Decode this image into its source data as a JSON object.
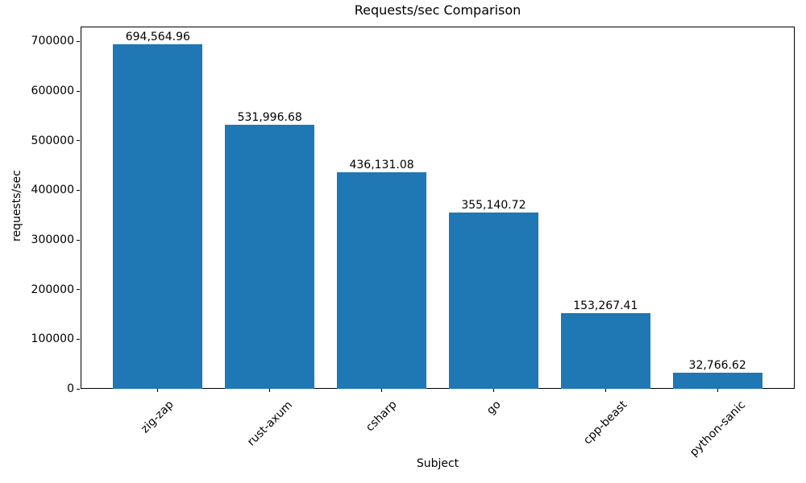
{
  "chart_data": {
    "type": "bar",
    "title": "Requests/sec Comparison",
    "xlabel": "Subject",
    "ylabel": "requests/sec",
    "categories": [
      "zig-zap",
      "rust-axum",
      "csharp",
      "go",
      "cpp-beast",
      "python-sanic"
    ],
    "values": [
      694564.96,
      531996.68,
      436131.08,
      355140.72,
      153267.41,
      32766.62
    ],
    "value_labels": [
      "694,564.96",
      "531,996.68",
      "436,131.08",
      "355,140.72",
      "153,267.41",
      "32,766.62"
    ],
    "yticks": [
      0,
      100000,
      200000,
      300000,
      400000,
      500000,
      600000,
      700000
    ],
    "ylim": [
      0,
      730000
    ],
    "grid": false,
    "legend": null,
    "bar_color": "#1f77b4",
    "background_color": "#ffffff",
    "text_color": "#000000",
    "axis_color": "#000000"
  }
}
